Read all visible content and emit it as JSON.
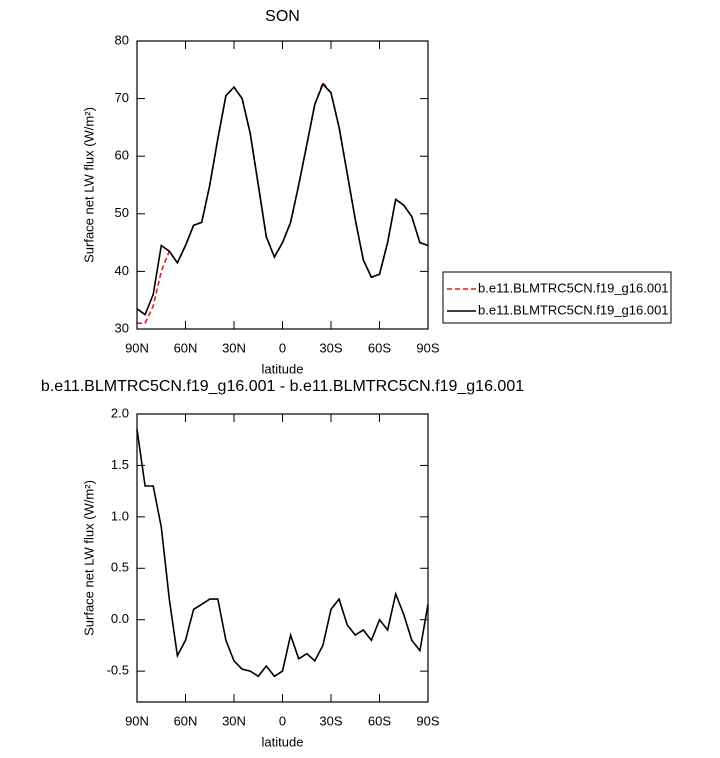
{
  "chart_data": [
    {
      "type": "line",
      "title": "SON",
      "xlabel": "latitude",
      "ylabel": "Surface net LW flux (W/m²)",
      "x": [
        90,
        85,
        80,
        75,
        70,
        65,
        60,
        55,
        50,
        45,
        40,
        35,
        30,
        25,
        20,
        15,
        10,
        5,
        0,
        -5,
        -10,
        -15,
        -20,
        -25,
        -30,
        -35,
        -40,
        -45,
        -50,
        -55,
        -60,
        -65,
        -70,
        -75,
        -80,
        -85,
        -90
      ],
      "series": [
        {
          "name": "b.e11.BLMTRC5CN.f19_g16.001",
          "color": "#e41a1c",
          "line_style": "dashed",
          "values": [
            31,
            31,
            34,
            40,
            43.5,
            41.5,
            44.5,
            48,
            48.5,
            55,
            63,
            70.5,
            72,
            70,
            64,
            55,
            46,
            42.5,
            45,
            48.5,
            55,
            62,
            69,
            72.8,
            71,
            65,
            57,
            49,
            42,
            39,
            39.5,
            45,
            52.5,
            51.5,
            49.5,
            45,
            44.5
          ]
        },
        {
          "name": "b.e11.BLMTRC5CN.f19_g16.001",
          "color": "#000000",
          "line_style": "solid",
          "values": [
            33.5,
            32.5,
            36,
            44.5,
            43.5,
            41.5,
            44.5,
            48,
            48.5,
            55,
            63,
            70.5,
            72,
            70,
            64,
            55,
            46,
            42.5,
            45,
            48.5,
            55,
            62,
            69,
            72.5,
            71,
            65,
            57,
            49,
            42,
            39,
            39.5,
            45,
            52.5,
            51.5,
            49.5,
            45,
            44.5
          ]
        }
      ],
      "xlim": [
        90,
        -90
      ],
      "xticks": [
        {
          "value": 90,
          "label": "90N"
        },
        {
          "value": 60,
          "label": "60N"
        },
        {
          "value": 30,
          "label": "30N"
        },
        0,
        {
          "value": -30,
          "label": "30S"
        },
        {
          "value": -60,
          "label": "60S"
        },
        {
          "value": -90,
          "label": "90S"
        }
      ],
      "ylim": [
        30,
        80
      ],
      "yticks": [
        30,
        40,
        50,
        60,
        70,
        80
      ],
      "legend": "right"
    },
    {
      "type": "line",
      "title": "b.e11.BLMTRC5CN.f19_g16.001 - b.e11.BLMTRC5CN.f19_g16.001",
      "xlabel": "latitude",
      "ylabel": "Surface net LW flux (W/m²)",
      "x": [
        90,
        85,
        80,
        75,
        70,
        65,
        60,
        55,
        50,
        45,
        40,
        35,
        30,
        25,
        20,
        15,
        10,
        5,
        0,
        -5,
        -10,
        -15,
        -20,
        -25,
        -30,
        -35,
        -40,
        -45,
        -50,
        -55,
        -60,
        -65,
        -70,
        -75,
        -80,
        -85,
        -90
      ],
      "series": [
        {
          "color": "#000000",
          "line_style": "solid",
          "values": [
            1.85,
            1.3,
            1.3,
            0.9,
            0.2,
            -0.35,
            -0.2,
            0.1,
            0.15,
            0.2,
            0.2,
            -0.2,
            -0.4,
            -0.48,
            -0.5,
            -0.55,
            -0.45,
            -0.55,
            -0.5,
            -0.15,
            -0.38,
            -0.33,
            -0.4,
            -0.25,
            0.1,
            0.2,
            -0.05,
            -0.15,
            -0.1,
            -0.2,
            0,
            -0.1,
            0.25,
            0.05,
            -0.2,
            -0.3,
            0.15
          ]
        }
      ],
      "xlim": [
        90,
        -90
      ],
      "xticks": [
        {
          "value": 90,
          "label": "90N"
        },
        {
          "value": 60,
          "label": "60N"
        },
        {
          "value": 30,
          "label": "30N"
        },
        0,
        {
          "value": -30,
          "label": "30S"
        },
        {
          "value": -60,
          "label": "60S"
        },
        {
          "value": -90,
          "label": "90S"
        }
      ],
      "ylim": [
        -0.8,
        2.0
      ],
      "yticks": [
        {
          "value": -0.5,
          "label": "-0.5"
        },
        {
          "value": 0,
          "label": "0.0"
        },
        0.5,
        {
          "value": 1,
          "label": "1.0"
        },
        1.5,
        {
          "value": 2,
          "label": "2.0"
        }
      ]
    }
  ]
}
